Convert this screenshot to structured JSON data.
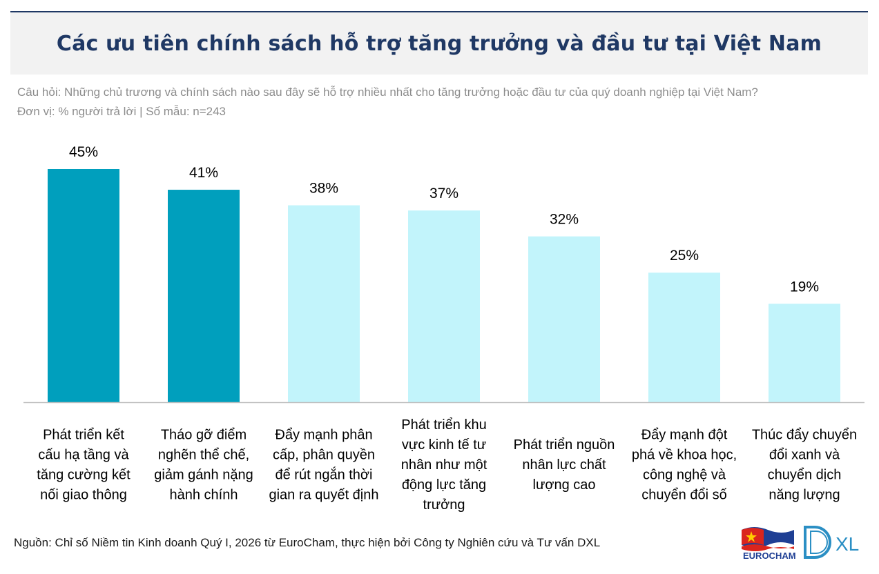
{
  "header": {
    "title": "Các ưu tiên chính sách hỗ trợ tăng trưởng và đầu tư tại Việt Nam",
    "question": "Câu hỏi: Những chủ trương và chính sách nào sau đây sẽ hỗ trợ nhiều nhất cho tăng trưởng hoặc đầu tư của quý doanh nghiệp tại Việt Nam?",
    "unit": "Đơn vị: % người trả lời | Số mẫu: n=243"
  },
  "chart_data": {
    "type": "bar",
    "categories": [
      [
        "Phát triển kết",
        "cấu hạ tầng và",
        "tăng cường kết",
        "nối giao thông"
      ],
      [
        "Tháo gỡ điểm",
        "nghẽn thể chế,",
        "giảm gánh nặng",
        "hành chính"
      ],
      [
        "Đẩy mạnh phân",
        "cấp, phân quyền",
        "để rút ngắn thời",
        "gian ra quyết định"
      ],
      [
        "Phát triển khu",
        "vực kinh tế tư",
        "nhân như một",
        "động lực tăng",
        "trưởng"
      ],
      [
        "Phát triển nguồn",
        "nhân lực chất",
        "lượng cao"
      ],
      [
        "Đẩy mạnh đột",
        "phá về khoa học,",
        "công nghệ và",
        "chuyển đổi số"
      ],
      [
        "Thúc đẩy chuyển",
        "đổi xanh và",
        "chuyển dịch",
        "năng lượng"
      ]
    ],
    "values": [
      45,
      41,
      38,
      37,
      32,
      25,
      19
    ],
    "data_labels": [
      "45%",
      "41%",
      "38%",
      "37%",
      "32%",
      "25%",
      "19%"
    ],
    "highlight": [
      true,
      true,
      false,
      false,
      false,
      false,
      false
    ],
    "colors": {
      "highlight": "#009fbd",
      "normal": "#c2f4fb",
      "axis": "#bfbfbf"
    },
    "ylim": [
      0,
      45
    ],
    "grid": false,
    "legend": "none"
  },
  "footer": {
    "source": "Nguồn: Chỉ số Niềm tin Kinh doanh Quý I, 2026 từ EuroCham, thực hiện bởi Công ty Nghiên cứu và Tư vấn DXL",
    "logo_eurocham": "EUROCHAM",
    "logo_dxl": "XL"
  }
}
